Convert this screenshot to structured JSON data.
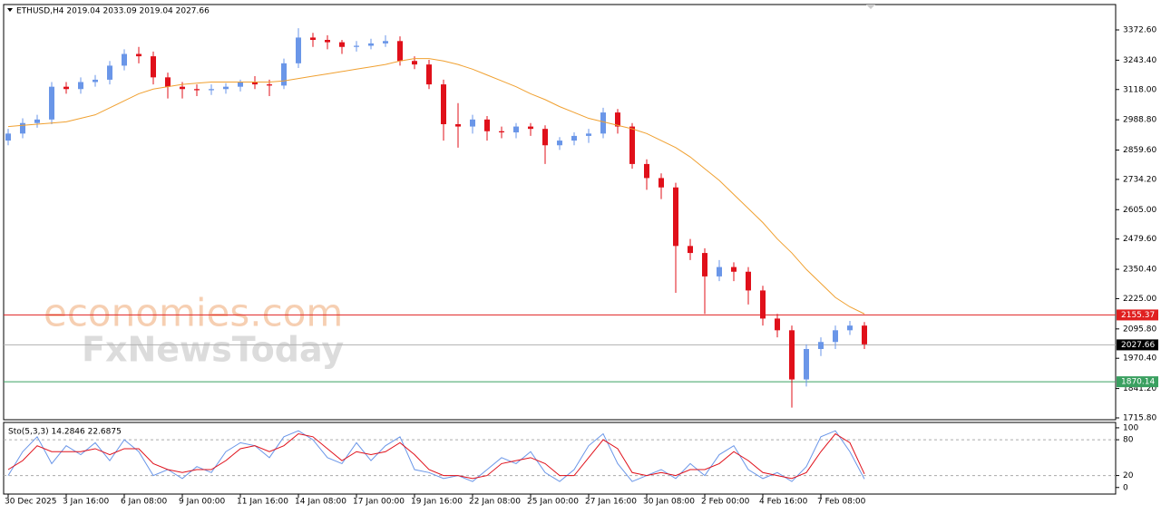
{
  "chart_data": {
    "type": "candlestick",
    "title": "ETHUSD,H4  2019.04 2033.09 2019.04 2027.66",
    "watermarks": [
      "economies.com",
      "FxNewsToday"
    ],
    "categories": [
      "30 Dec 2025",
      null,
      null,
      null,
      "3 Jan 16:00",
      null,
      null,
      null,
      "6 Jan 08:00",
      null,
      null,
      null,
      "9 Jan 00:00",
      null,
      null,
      null,
      "11 Jan 16:00",
      null,
      null,
      null,
      "14 Jan 08:00",
      null,
      null,
      null,
      "17 Jan 00:00",
      null,
      null,
      null,
      "19 Jan 16:00",
      null,
      null,
      null,
      "22 Jan 08:00",
      null,
      null,
      null,
      "25 Jan 00:00",
      null,
      null,
      null,
      "27 Jan 16:00",
      null,
      null,
      null,
      "30 Jan 08:00",
      null,
      null,
      null,
      "2 Feb 00:00",
      null,
      null,
      null,
      "4 Feb 16:00",
      null,
      null,
      null,
      "7 Feb 08:00",
      null,
      null,
      null
    ],
    "open": [
      2900,
      2930,
      2975,
      2990,
      3130,
      3120,
      3150,
      3160,
      3220,
      3270,
      3260,
      3170,
      3130,
      3120,
      3115,
      3120,
      3130,
      3150,
      3140,
      3135,
      3230,
      3340,
      3330,
      3320,
      3300,
      3305,
      3315,
      3325,
      3240,
      3225,
      3140,
      2970,
      2960,
      2990,
      2940,
      2935,
      2960,
      2950,
      2880,
      2900,
      2920,
      2930,
      3020,
      2960,
      2800,
      2740,
      2700,
      2450,
      2420,
      2320,
      2360,
      2340,
      2260,
      2140,
      2090,
      1880,
      2010,
      2040,
      2090,
      2110
    ],
    "high": [
      2950,
      2995,
      3010,
      3150,
      3150,
      3170,
      3180,
      3240,
      3290,
      3300,
      3280,
      3190,
      3150,
      3140,
      3140,
      3145,
      3160,
      3175,
      3160,
      3250,
      3380,
      3360,
      3350,
      3330,
      3325,
      3335,
      3350,
      3345,
      3260,
      3245,
      3160,
      3060,
      3010,
      3005,
      2960,
      2975,
      2975,
      2965,
      2915,
      2935,
      2950,
      3040,
      3035,
      2975,
      2820,
      2760,
      2720,
      2480,
      2440,
      2390,
      2380,
      2360,
      2280,
      2160,
      2110,
      2030,
      2060,
      2110,
      2130,
      2125
    ],
    "low": [
      2880,
      2910,
      2955,
      2970,
      3100,
      3100,
      3130,
      3140,
      3200,
      3230,
      3140,
      3080,
      3080,
      3090,
      3095,
      3100,
      3110,
      3120,
      3090,
      3120,
      3210,
      3300,
      3290,
      3270,
      3280,
      3290,
      3300,
      3220,
      3205,
      3120,
      2900,
      2870,
      2930,
      2900,
      2910,
      2910,
      2920,
      2800,
      2860,
      2880,
      2890,
      2910,
      2930,
      2780,
      2690,
      2650,
      2250,
      2390,
      2160,
      2300,
      2300,
      2200,
      2110,
      2060,
      1760,
      1850,
      1980,
      2010,
      2070,
      2010
    ],
    "close": [
      2930,
      2975,
      2990,
      3130,
      3120,
      3150,
      3160,
      3220,
      3270,
      3260,
      3170,
      3130,
      3120,
      3115,
      3120,
      3130,
      3150,
      3140,
      3135,
      3230,
      3340,
      3330,
      3320,
      3300,
      3305,
      3315,
      3325,
      3240,
      3225,
      3140,
      2970,
      2960,
      2990,
      2940,
      2935,
      2960,
      2950,
      2880,
      2900,
      2920,
      2930,
      3020,
      2960,
      2800,
      2740,
      2700,
      2450,
      2420,
      2320,
      2360,
      2340,
      2260,
      2140,
      2090,
      1880,
      2010,
      2040,
      2090,
      2110,
      2030
    ],
    "up_color": "#6a96e8",
    "down_color": "#e0101a",
    "moving_average": {
      "color": "#f0a030",
      "values": [
        2960,
        2965,
        2970,
        2975,
        2980,
        2995,
        3010,
        3040,
        3070,
        3100,
        3120,
        3130,
        3140,
        3145,
        3150,
        3150,
        3150,
        3150,
        3150,
        3155,
        3165,
        3175,
        3185,
        3195,
        3205,
        3215,
        3225,
        3240,
        3250,
        3250,
        3240,
        3225,
        3205,
        3180,
        3155,
        3130,
        3100,
        3075,
        3045,
        3020,
        2995,
        2980,
        2965,
        2950,
        2930,
        2900,
        2870,
        2830,
        2780,
        2730,
        2670,
        2610,
        2550,
        2480,
        2420,
        2350,
        2290,
        2230,
        2190,
        2160
      ]
    },
    "ylim": [
      1708,
      3481
    ],
    "yticks": [
      {
        "value": 3372.6,
        "label": "3372.60"
      },
      {
        "value": 3243.4,
        "label": "3243.40"
      },
      {
        "value": 3118,
        "label": "3118.00"
      },
      {
        "value": 2988.8,
        "label": "2988.80"
      },
      {
        "value": 2859.6,
        "label": "2859.60"
      },
      {
        "value": 2734.2,
        "label": "2734.20"
      },
      {
        "value": 2605,
        "label": "2605.00"
      },
      {
        "value": 2479.6,
        "label": "2479.60"
      },
      {
        "value": 2350.4,
        "label": "2350.40"
      },
      {
        "value": 2225,
        "label": "2225.00"
      },
      {
        "value": 2095.8,
        "label": "2095.80"
      },
      {
        "value": 1970.4,
        "label": "1970.40"
      },
      {
        "value": 1841.2,
        "label": "1841.20"
      },
      {
        "value": 1715.8,
        "label": "1715.80"
      }
    ],
    "levels": [
      {
        "value": 2155.37,
        "color": "#e02020"
      },
      {
        "value": 2027.66,
        "color": "#000000"
      },
      {
        "value": 1870.14,
        "color": "#3aa060"
      }
    ],
    "indicator": {
      "title": "Sto(5,3,3) 14.2846 22.6875",
      "ylim": [
        -11,
        109
      ],
      "yticks": [
        100,
        80,
        20,
        0
      ],
      "levels": [
        80,
        20
      ],
      "series": [
        {
          "color": "#6a96e8",
          "values": [
            20,
            60,
            85,
            40,
            70,
            55,
            75,
            45,
            80,
            60,
            20,
            30,
            15,
            35,
            25,
            60,
            75,
            70,
            50,
            85,
            95,
            80,
            50,
            40,
            75,
            45,
            70,
            85,
            30,
            25,
            15,
            20,
            10,
            30,
            50,
            40,
            60,
            25,
            10,
            30,
            70,
            90,
            40,
            10,
            20,
            30,
            15,
            40,
            20,
            55,
            70,
            30,
            15,
            25,
            10,
            35,
            85,
            95,
            60,
            14.2846
          ]
        },
        {
          "color": "#e0101a",
          "values": [
            30,
            45,
            70,
            60,
            60,
            60,
            65,
            55,
            65,
            65,
            40,
            30,
            25,
            30,
            30,
            45,
            65,
            70,
            60,
            70,
            90,
            85,
            65,
            45,
            60,
            55,
            60,
            75,
            55,
            30,
            20,
            20,
            15,
            20,
            40,
            45,
            50,
            40,
            20,
            20,
            50,
            80,
            65,
            25,
            20,
            25,
            20,
            30,
            30,
            40,
            60,
            45,
            25,
            20,
            15,
            25,
            60,
            90,
            75,
            22.6875
          ]
        }
      ]
    }
  }
}
